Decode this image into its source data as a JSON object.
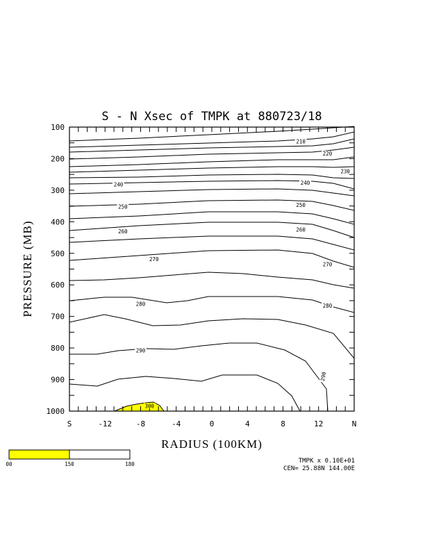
{
  "chart_data": {
    "type": "contour",
    "title": "S - N Xsec of TMPK at 880723/18",
    "xlabel": "RADIUS (100KM)",
    "ylabel": "PRESSURE (MB)",
    "x_tick_labels": [
      "S",
      "-12",
      "-8",
      "-4",
      "0",
      "4",
      "8",
      "12",
      "N"
    ],
    "x_range": [
      -16,
      16
    ],
    "y_tick_labels": [
      "100",
      "200",
      "300",
      "400",
      "500",
      "600",
      "700",
      "800",
      "900",
      "1000"
    ],
    "y_range": [
      100,
      1000
    ],
    "y_direction": "pressure increasing downward",
    "contour_labels": [
      {
        "text": "210",
        "x": 10.0,
        "p": 145
      },
      {
        "text": "220",
        "x": 13.0,
        "p": 184
      },
      {
        "text": "230",
        "x": 15.0,
        "p": 240
      },
      {
        "text": "240",
        "x": -10.5,
        "p": 282
      },
      {
        "text": "240",
        "x": 10.5,
        "p": 276
      },
      {
        "text": "250",
        "x": -10.0,
        "p": 352
      },
      {
        "text": "250",
        "x": 10.0,
        "p": 346
      },
      {
        "text": "260",
        "x": -10.0,
        "p": 430
      },
      {
        "text": "260",
        "x": 10.0,
        "p": 425
      },
      {
        "text": "270",
        "x": -6.5,
        "p": 518
      },
      {
        "text": "270",
        "x": 13.0,
        "p": 535
      },
      {
        "text": "280",
        "x": -8.0,
        "p": 660
      },
      {
        "text": "280",
        "x": 13.0,
        "p": 665
      },
      {
        "text": "290",
        "x": -8.0,
        "p": 808
      },
      {
        "text": "290",
        "x": 12.5,
        "p": 890
      },
      {
        "text": "300",
        "x": -7.0,
        "p": 983
      }
    ],
    "shaded_region_label": "300",
    "colorbar": {
      "colors": [
        "#ffff00",
        "#ffffff"
      ],
      "tick_labels": [
        "00",
        "150",
        "180"
      ]
    },
    "footer": {
      "scale": "TMPK x  0.10E+01",
      "center": "CEN= 25.88N  144.00E"
    }
  }
}
